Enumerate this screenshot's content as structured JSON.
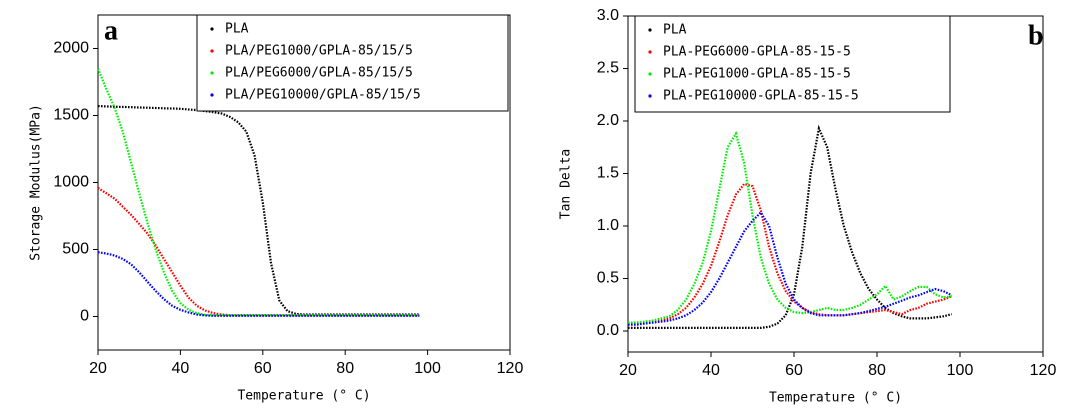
{
  "chart_data": [
    {
      "type": "line",
      "label": "a",
      "ylabel": "Storage Modulus(MPa)",
      "xlabel": "Temperature (° C)",
      "xlim": [
        20,
        120
      ],
      "xticks": [
        20,
        40,
        60,
        80,
        100,
        120
      ],
      "ylim": [
        -250,
        2250
      ],
      "yticks": [
        0,
        500,
        1000,
        1500,
        2000
      ],
      "legend": "upper right",
      "x": [
        20,
        22,
        24,
        26,
        28,
        30,
        32,
        34,
        36,
        38,
        40,
        42,
        44,
        46,
        48,
        50,
        52,
        54,
        56,
        58,
        60,
        62,
        64,
        66,
        68,
        70,
        72,
        74,
        76,
        78,
        80,
        82,
        84,
        86,
        88,
        90,
        92,
        94,
        96,
        98
      ],
      "series": [
        {
          "name": "PLA",
          "color": "#000000",
          "values": [
            1570,
            1568,
            1566,
            1564,
            1562,
            1560,
            1558,
            1556,
            1554,
            1552,
            1550,
            1545,
            1540,
            1533,
            1525,
            1515,
            1490,
            1450,
            1380,
            1200,
            850,
            400,
            120,
            40,
            20,
            15,
            15,
            15,
            15,
            15,
            15,
            15,
            15,
            15,
            15,
            15,
            15,
            15,
            15,
            15
          ]
        },
        {
          "name": "PLA/PEG1000/GPLA-85/15/5",
          "color": "#ff0000",
          "values": [
            960,
            920,
            880,
            820,
            760,
            690,
            620,
            530,
            430,
            330,
            230,
            140,
            80,
            45,
            25,
            15,
            10,
            10,
            10,
            10,
            10,
            10,
            10,
            10,
            10,
            10,
            10,
            10,
            10,
            10,
            10,
            10,
            10,
            10,
            10,
            10,
            10,
            10,
            10,
            10
          ]
        },
        {
          "name": "PLA/PEG6000/GPLA-85/15/5",
          "color": "#00ee00",
          "values": [
            1850,
            1700,
            1560,
            1380,
            1150,
            920,
            700,
            500,
            330,
            190,
            100,
            50,
            25,
            12,
            10,
            10,
            10,
            10,
            10,
            10,
            10,
            10,
            10,
            10,
            10,
            10,
            10,
            10,
            10,
            10,
            10,
            10,
            10,
            10,
            10,
            10,
            10,
            10,
            10,
            10
          ]
        },
        {
          "name": "PLA/PEG10000/GPLA-85/15/5",
          "color": "#0000ff",
          "values": [
            480,
            470,
            455,
            430,
            390,
            330,
            260,
            190,
            130,
            80,
            50,
            30,
            15,
            8,
            5,
            5,
            5,
            5,
            5,
            5,
            5,
            5,
            5,
            5,
            5,
            5,
            5,
            5,
            5,
            5,
            5,
            5,
            5,
            5,
            5,
            5,
            5,
            5,
            5,
            5
          ]
        }
      ]
    },
    {
      "type": "line",
      "label": "b",
      "ylabel": "Tan Delta",
      "xlabel": "Temperature (° C)",
      "xlim": [
        20,
        120
      ],
      "xticks": [
        20,
        40,
        60,
        80,
        100,
        120
      ],
      "ylim": [
        -0.2,
        3.0
      ],
      "yticks": [
        {
          "value": 0,
          "label": "0.0"
        },
        0.5,
        {
          "value": 1,
          "label": "1.0"
        },
        1.5,
        {
          "value": 2,
          "label": "2.0"
        },
        2.5,
        {
          "value": 3,
          "label": "3.0"
        }
      ],
      "legend": "upper left",
      "x": [
        20,
        22,
        24,
        26,
        28,
        30,
        32,
        34,
        36,
        38,
        40,
        42,
        44,
        46,
        48,
        50,
        52,
        54,
        56,
        58,
        60,
        62,
        64,
        66,
        68,
        70,
        72,
        74,
        76,
        78,
        80,
        82,
        84,
        86,
        88,
        90,
        92,
        94,
        96,
        98
      ],
      "series": [
        {
          "name": "PLA",
          "color": "#000000",
          "values": [
            0.03,
            0.03,
            0.03,
            0.03,
            0.03,
            0.03,
            0.03,
            0.03,
            0.03,
            0.03,
            0.03,
            0.03,
            0.03,
            0.03,
            0.03,
            0.03,
            0.03,
            0.04,
            0.07,
            0.15,
            0.35,
            0.8,
            1.5,
            1.93,
            1.75,
            1.35,
            1.0,
            0.75,
            0.55,
            0.4,
            0.3,
            0.22,
            0.17,
            0.14,
            0.12,
            0.12,
            0.12,
            0.13,
            0.14,
            0.16
          ]
        },
        {
          "name": "PLA-PEG6000-GPLA-85-15-5",
          "color": "#ff0000",
          "values": [
            0.07,
            0.07,
            0.08,
            0.09,
            0.1,
            0.12,
            0.16,
            0.22,
            0.32,
            0.45,
            0.62,
            0.85,
            1.1,
            1.3,
            1.4,
            1.38,
            1.15,
            0.8,
            0.55,
            0.38,
            0.28,
            0.22,
            0.18,
            0.16,
            0.15,
            0.15,
            0.15,
            0.16,
            0.17,
            0.18,
            0.19,
            0.2,
            0.18,
            0.16,
            0.2,
            0.22,
            0.26,
            0.28,
            0.3,
            0.33
          ]
        },
        {
          "name": "PLA-PEG1000-GPLA-85-15-5",
          "color": "#00ee00",
          "values": [
            0.08,
            0.08,
            0.09,
            0.1,
            0.12,
            0.14,
            0.2,
            0.3,
            0.45,
            0.65,
            0.95,
            1.35,
            1.75,
            1.88,
            1.6,
            1.1,
            0.7,
            0.45,
            0.3,
            0.22,
            0.18,
            0.17,
            0.18,
            0.2,
            0.22,
            0.2,
            0.2,
            0.22,
            0.25,
            0.3,
            0.35,
            0.43,
            0.3,
            0.33,
            0.38,
            0.42,
            0.42,
            0.35,
            0.32,
            0.33
          ]
        },
        {
          "name": "PLA-PEG10000-GPLA-85-15-5",
          "color": "#0000ff",
          "values": [
            0.06,
            0.06,
            0.07,
            0.08,
            0.09,
            0.1,
            0.12,
            0.15,
            0.2,
            0.27,
            0.37,
            0.5,
            0.65,
            0.8,
            0.95,
            1.05,
            1.13,
            1.0,
            0.7,
            0.45,
            0.3,
            0.22,
            0.17,
            0.15,
            0.15,
            0.15,
            0.15,
            0.16,
            0.17,
            0.19,
            0.21,
            0.23,
            0.26,
            0.29,
            0.32,
            0.34,
            0.37,
            0.4,
            0.38,
            0.34
          ]
        }
      ]
    }
  ]
}
